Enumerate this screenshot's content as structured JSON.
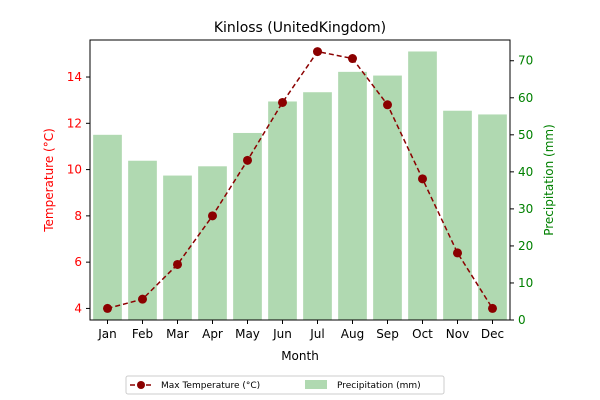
{
  "chart_data": {
    "type": "bar+line",
    "title": "Kinloss (UnitedKingdom)",
    "xlabel": "Month",
    "ylabel_left": "Temperature (°C)",
    "ylabel_right": "Precipitation (mm)",
    "categories": [
      "Jan",
      "Feb",
      "Mar",
      "Apr",
      "May",
      "Jun",
      "Jul",
      "Aug",
      "Sep",
      "Oct",
      "Nov",
      "Dec"
    ],
    "y_left": {
      "lim": [
        3.5,
        15.6
      ],
      "ticks": [
        4,
        6,
        8,
        10,
        12,
        14
      ],
      "color": "#ff0000"
    },
    "y_right": {
      "lim": [
        0,
        75.6
      ],
      "ticks": [
        0,
        10,
        20,
        30,
        40,
        50,
        60,
        70
      ],
      "color": "#008000"
    },
    "series": [
      {
        "name": "Max Temperature (°C)",
        "type": "line",
        "axis": "left",
        "color": "#8b0000",
        "line_style": "dashed",
        "marker": "circle",
        "values": [
          4.0,
          4.4,
          5.9,
          8.0,
          10.4,
          12.9,
          15.1,
          14.8,
          12.8,
          9.6,
          6.4,
          4.0
        ]
      },
      {
        "name": "Precipitation (mm)",
        "type": "bar",
        "axis": "right",
        "color": "#b0d9b1",
        "values": [
          50.0,
          43.0,
          39.0,
          41.5,
          50.5,
          59.0,
          61.5,
          67.0,
          66.0,
          72.5,
          56.5,
          55.5
        ]
      }
    ],
    "legend": {
      "placement": "bottom-center",
      "columns": 2
    },
    "grid": false
  }
}
